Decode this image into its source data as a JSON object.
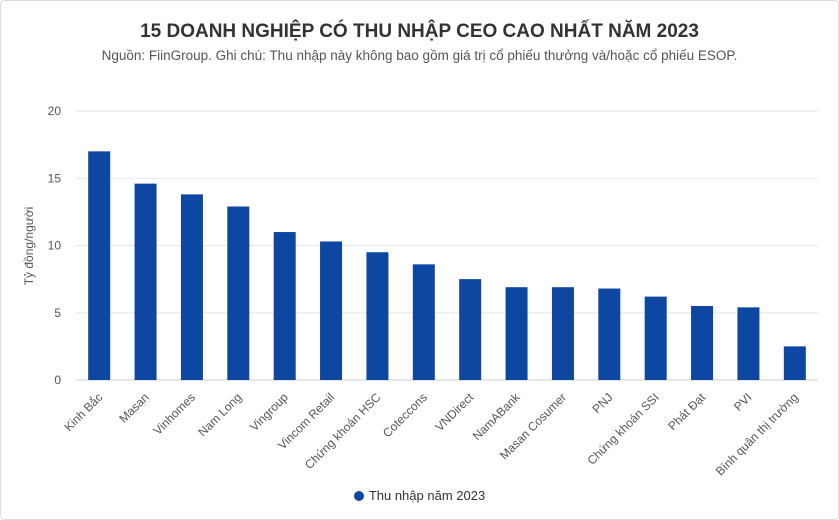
{
  "chart_data": {
    "type": "bar",
    "title": "15 DOANH NGHIỆP CÓ THU NHẬP CEO CAO NHẤT NĂM 2023",
    "subtitle": "Nguồn: FiinGroup. Ghi chú: Thu nhập này không bao gồm giá trị cổ phiếu thưởng và/hoặc cổ phiếu ESOP.",
    "xlabel": "",
    "ylabel": "Tỷ đồng/người",
    "ylim": [
      0,
      20
    ],
    "yticks": [
      0,
      5,
      10,
      15,
      20
    ],
    "grid": true,
    "legend_position": "bottom",
    "color": "#0d47a1",
    "categories": [
      "Kinh Bắc",
      "Masan",
      "Vinhomes",
      "Nam Long",
      "Vingroup",
      "Vincom Retail",
      "Chứng khoán HSC",
      "Coteccons",
      "VNDirect",
      "NamABank",
      "Masan Cosumer",
      "PNJ",
      "Chứng khoán SSI",
      "Phát Đạt",
      "PVI",
      "Bình quân thị trường"
    ],
    "series": [
      {
        "name": "Thu nhập năm 2023",
        "values": [
          17.0,
          14.6,
          13.8,
          12.9,
          11.0,
          10.3,
          9.5,
          8.6,
          7.5,
          6.9,
          6.9,
          6.8,
          6.2,
          5.5,
          5.4,
          2.5
        ]
      }
    ]
  }
}
